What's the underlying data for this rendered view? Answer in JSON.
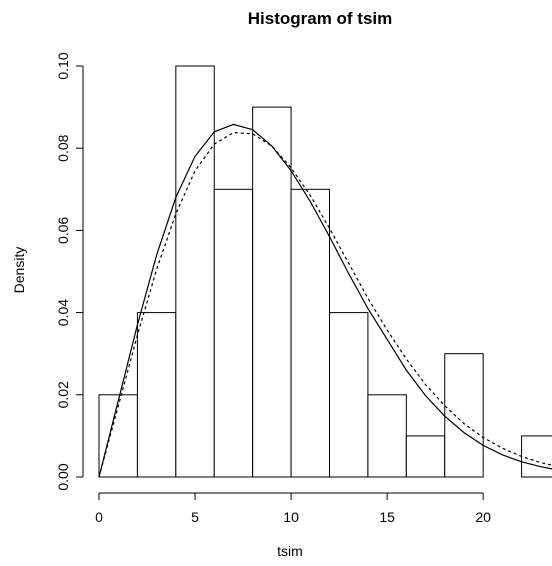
{
  "chart_data": {
    "type": "bar",
    "title": "Histogram of tsim",
    "xlabel": "tsim",
    "ylabel": "Density",
    "bins": [
      {
        "from": 0,
        "to": 2,
        "density": 0.02
      },
      {
        "from": 2,
        "to": 4,
        "density": 0.04
      },
      {
        "from": 4,
        "to": 6,
        "density": 0.1
      },
      {
        "from": 6,
        "to": 8,
        "density": 0.07
      },
      {
        "from": 8,
        "to": 10,
        "density": 0.09
      },
      {
        "from": 10,
        "to": 12,
        "density": 0.07
      },
      {
        "from": 12,
        "to": 14,
        "density": 0.04
      },
      {
        "from": 14,
        "to": 16,
        "density": 0.02
      },
      {
        "from": 16,
        "to": 18,
        "density": 0.01
      },
      {
        "from": 18,
        "to": 20,
        "density": 0.03
      },
      {
        "from": 20,
        "to": 22,
        "density": 0.0
      },
      {
        "from": 22,
        "to": 24,
        "density": 0.01
      }
    ],
    "xlim": [
      0,
      24
    ],
    "ylim": [
      0,
      0.1
    ],
    "x_ticks": [
      0,
      5,
      10,
      15,
      20
    ],
    "y_ticks": [
      "0.00",
      "0.02",
      "0.04",
      "0.06",
      "0.08",
      "0.10"
    ],
    "curves": [
      {
        "style": "solid",
        "x": [
          0,
          1,
          2,
          3,
          4,
          5,
          6,
          7,
          8,
          9,
          10,
          11,
          12,
          13,
          14,
          15,
          16,
          17,
          18,
          19,
          20,
          21,
          22,
          23,
          24
        ],
        "y": [
          0,
          0.0185,
          0.037,
          0.054,
          0.068,
          0.078,
          0.084,
          0.0858,
          0.0845,
          0.0805,
          0.0745,
          0.067,
          0.0585,
          0.0495,
          0.041,
          0.0335,
          0.026,
          0.0198,
          0.0148,
          0.0108,
          0.0077,
          0.0054,
          0.0037,
          0.0025,
          0.0016
        ]
      },
      {
        "style": "dashed",
        "x": [
          0,
          1,
          2,
          3,
          4,
          5,
          6,
          7,
          8,
          9,
          10,
          11,
          12,
          13,
          14,
          15,
          16,
          17,
          18,
          19,
          20,
          21,
          22,
          23,
          24
        ],
        "y": [
          0,
          0.0172,
          0.0345,
          0.0505,
          0.064,
          0.0745,
          0.081,
          0.0838,
          0.0835,
          0.0805,
          0.0752,
          0.0685,
          0.0605,
          0.052,
          0.0435,
          0.0358,
          0.0287,
          0.0225,
          0.0173,
          0.013,
          0.0096,
          0.007,
          0.005,
          0.0035,
          0.0024
        ]
      }
    ]
  }
}
